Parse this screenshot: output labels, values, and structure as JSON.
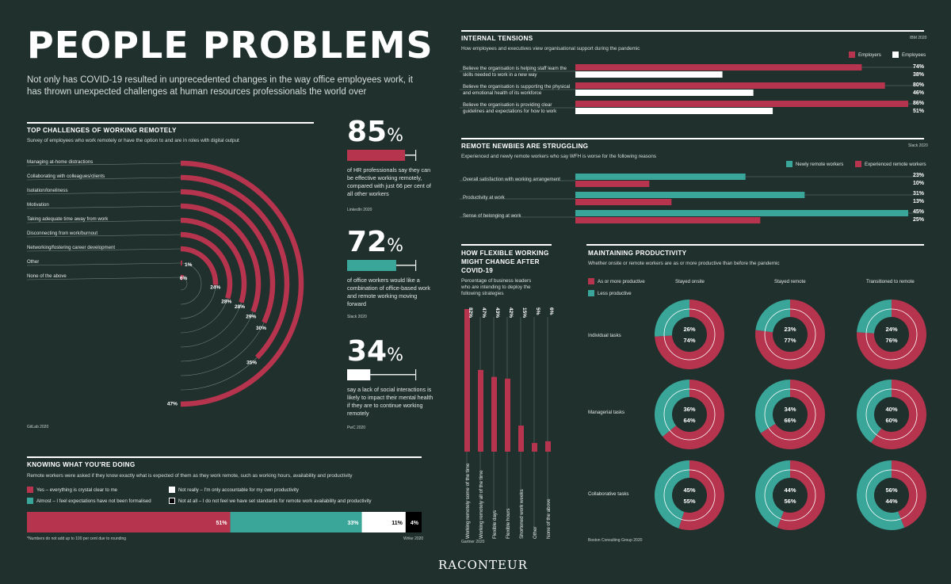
{
  "colors": {
    "bg": "#1f302d",
    "crimson": "#b6344d",
    "teal": "#3aa69a",
    "white": "#ffffff",
    "black": "#000000"
  },
  "title": "PEOPLE PROBLEMS",
  "intro": "Not only has COVID-19 resulted in unprecedented changes in the way office employees work, it has thrown unexpected challenges at human resources professionals the world over",
  "top_challenges": {
    "heading": "TOP CHALLENGES OF WORKING REMOTELY",
    "subtitle": "Survey of employees who work remotely or have the option to and are in roles with digital output",
    "source": "GitLab 2020"
  },
  "stats": [
    {
      "value": "85",
      "unit": "%",
      "text": "of HR professionals say they can be effective working remotely, compared with just 66 per cent of all other workers",
      "source": "LinkedIn 2020"
    },
    {
      "value": "72",
      "unit": "%",
      "text": "of office workers would like a combination of office-based work and remote working moving forward",
      "source": "Slack 2020"
    },
    {
      "value": "34",
      "unit": "%",
      "text": "say a lack of social interactions is likely to impact their mental health if they are to continue working remotely",
      "source": "PwC 2020"
    }
  ],
  "knowing": {
    "heading": "KNOWING WHAT YOU'RE DOING",
    "subtitle": "Remote workers were asked if they know exactly what is expected of them as they work remote, such as working hours, availability and productivity",
    "legend": [
      "Yes – everything is crystal clear to me",
      "Almost – I feel expectations have not been formalised",
      "Not really – I'm only accountable for my own productivity",
      "Not at all – I do not feel we have set standards for remote work availability and productivity"
    ],
    "note": "*Numbers do not add up to 100 per cent due to rounding",
    "source": "Wrike 2020"
  },
  "tensions": {
    "heading": "INTERNAL TENSIONS",
    "subtitle": "How employees and executives view organisational support during the pandemic",
    "source": "IBM 2020",
    "legend": [
      "Employers",
      "Employees"
    ],
    "rows": [
      {
        "label": "Believe the organisation is helping staff learn the skills needed to work in a new way",
        "a": "74%",
        "b": "38%"
      },
      {
        "label": "Believe the organisation is supporting the physical and emotional health of its workforce",
        "a": "80%",
        "b": "46%"
      },
      {
        "label": "Believe the organisation is providing clear guidelines and expectations for how to work",
        "a": "86%",
        "b": "51%"
      }
    ]
  },
  "newbies": {
    "heading": "REMOTE NEWBIES ARE STRUGGLING",
    "subtitle": "Experienced and newly remote workers who say WFH is worse for the following reasons",
    "source": "Slack 2020",
    "legend": [
      "Newly remote workers",
      "Experienced remote workers"
    ],
    "rows": [
      {
        "label": "Overall satisfaction with working arrangement",
        "a": "23%",
        "b": "10%"
      },
      {
        "label": "Productivity at work",
        "a": "31%",
        "b": "13%"
      },
      {
        "label": "Sense of belonging at work",
        "a": "45%",
        "b": "25%"
      }
    ]
  },
  "flexible": {
    "heading1": "HOW FLEXIBLE WORKING",
    "heading2": "MIGHT CHANGE AFTER",
    "heading3": "COVID-19",
    "subtitle1": "Percentage of business leaders",
    "subtitle2": "who are intending to deploy the",
    "subtitle3": "following strategies",
    "source": "Gartner 2020"
  },
  "productivity": {
    "heading": "MAINTAINING PRODUCTIVITY",
    "subtitle": "Whether onsite or remote workers are as or more productive than before the pandemic",
    "legend": [
      "As or more productive",
      "Less productive"
    ],
    "columns": [
      "Stayed onsite",
      "Stayed remote",
      "Transitioned to remote"
    ],
    "rows": [
      "Individual tasks",
      "Managerial tasks",
      "Collaborative tasks"
    ],
    "source": "Boston Consulting Group 2020"
  },
  "brand": "RACONTEUR",
  "chart_data": [
    {
      "type": "bar",
      "title": "TOP CHALLENGES OF WORKING REMOTELY",
      "categories": [
        "Managing at-home distractions",
        "Collaborating with colleagues/clients",
        "Isolation/loneliness",
        "Motivation",
        "Taking adequate time away from work",
        "Disconnecting from work/burnout",
        "Networking/fostering career development",
        "Other",
        "None of the above"
      ],
      "values": [
        47,
        35,
        30,
        29,
        28,
        28,
        24,
        1,
        6
      ],
      "labels": [
        "47%",
        "35%",
        "30%",
        "29%",
        "28%",
        "28%",
        "24%",
        "1%",
        "6%"
      ]
    },
    {
      "type": "bar",
      "title": "85%",
      "values": [
        85
      ],
      "ylim": [
        0,
        100
      ]
    },
    {
      "type": "bar",
      "title": "72%",
      "values": [
        72
      ],
      "ylim": [
        0,
        100
      ]
    },
    {
      "type": "bar",
      "title": "34%",
      "values": [
        34
      ],
      "ylim": [
        0,
        100
      ]
    },
    {
      "type": "bar",
      "title": "KNOWING WHAT YOU'RE DOING",
      "categories": [
        "Yes – everything is crystal clear to me",
        "Almost – I feel expectations have not been formalised",
        "Not really – I'm only accountable for my own productivity",
        "Not at all – I do not feel we have set standards for remote work availability and productivity"
      ],
      "values": [
        51,
        33,
        11,
        4
      ],
      "labels": [
        "51%",
        "33%",
        "11%",
        "4%"
      ]
    },
    {
      "type": "bar",
      "title": "INTERNAL TENSIONS",
      "categories": [
        "Believe the organisation is helping staff learn the skills needed to work in a new way",
        "Believe the organisation is supporting the physical and emotional health of its workforce",
        "Believe the organisation is providing clear guidelines and expectations for how to work"
      ],
      "series": [
        {
          "name": "Employers",
          "values": [
            74,
            80,
            86
          ]
        },
        {
          "name": "Employees",
          "values": [
            38,
            46,
            51
          ]
        }
      ]
    },
    {
      "type": "bar",
      "title": "REMOTE NEWBIES ARE STRUGGLING",
      "categories": [
        "Overall satisfaction with working arrangement",
        "Productivity at work",
        "Sense of belonging at work"
      ],
      "series": [
        {
          "name": "Newly remote workers",
          "values": [
            23,
            31,
            45
          ]
        },
        {
          "name": "Experienced remote workers",
          "values": [
            10,
            13,
            25
          ]
        }
      ]
    },
    {
      "type": "bar",
      "title": "HOW FLEXIBLE WORKING MIGHT CHANGE AFTER COVID-19",
      "categories": [
        "Working remotely some of the time",
        "Working remotely all of the time",
        "Flexible days",
        "Flexible hours",
        "Shortened work weeks",
        "Other",
        "None of the above"
      ],
      "values": [
        82,
        47,
        43,
        42,
        15,
        5,
        6
      ],
      "labels": [
        "82%",
        "47%",
        "43%",
        "42%",
        "15%",
        "5%",
        "6%"
      ]
    },
    {
      "type": "pie",
      "title": "MAINTAINING PRODUCTIVITY",
      "columns": [
        "Stayed onsite",
        "Stayed remote",
        "Transitioned to remote"
      ],
      "rows": [
        "Individual tasks",
        "Managerial tasks",
        "Collaborative tasks"
      ],
      "series": [
        {
          "name": "As or more productive",
          "values": [
            [
              74,
              77,
              76
            ],
            [
              64,
              66,
              60
            ],
            [
              55,
              56,
              44
            ]
          ]
        },
        {
          "name": "Less productive",
          "values": [
            [
              26,
              23,
              24
            ],
            [
              36,
              34,
              40
            ],
            [
              45,
              44,
              56
            ]
          ]
        }
      ],
      "labels": [
        [
          [
            "26%",
            "74%"
          ],
          [
            "23%",
            "77%"
          ],
          [
            "24%",
            "76%"
          ]
        ],
        [
          [
            "36%",
            "64%"
          ],
          [
            "34%",
            "66%"
          ],
          [
            "40%",
            "60%"
          ]
        ],
        [
          [
            "45%",
            "55%"
          ],
          [
            "44%",
            "56%"
          ],
          [
            "56%",
            "44%"
          ]
        ]
      ]
    }
  ]
}
